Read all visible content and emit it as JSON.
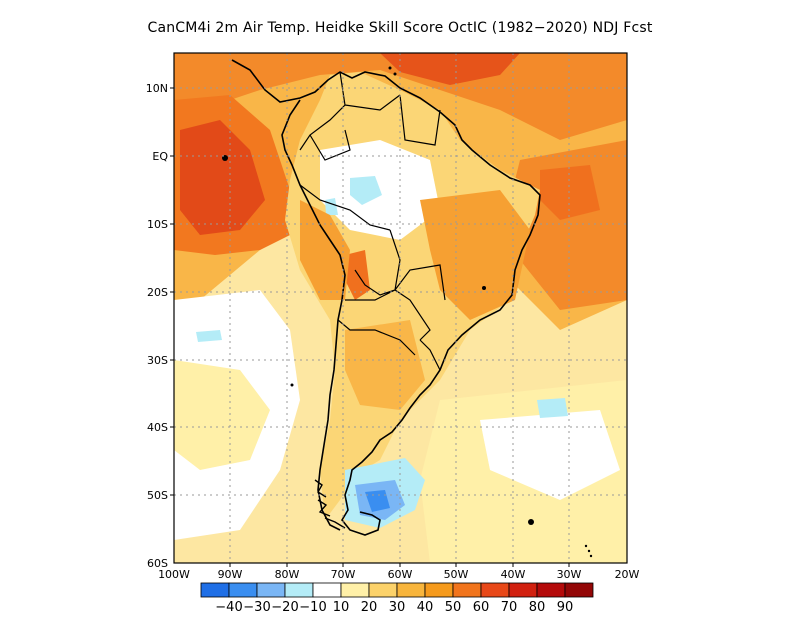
{
  "title": "CanCM4i  2m Air Temp. Heidke Skill Score OctIC (1982−2020) NDJ Fcst",
  "map": {
    "lat_labels": [
      "10N",
      "EQ",
      "10S",
      "20S",
      "30S",
      "40S",
      "50S",
      "60S"
    ],
    "lon_labels": [
      "100W",
      "90W",
      "80W",
      "70W",
      "60W",
      "50W",
      "40W",
      "30W",
      "20W"
    ],
    "region": "South America"
  },
  "colorbar": {
    "labels": [
      "−40",
      "−30",
      "−20",
      "−10",
      "10",
      "20",
      "30",
      "40",
      "50",
      "60",
      "70",
      "80",
      "90"
    ],
    "colors": [
      "#1f6fe6",
      "#3a8ef0",
      "#7ab6f5",
      "#b4ecf7",
      "#ffffff",
      "#fff0a8",
      "#fcd26a",
      "#f8b53c",
      "#f59a1c",
      "#f1741c",
      "#e84818",
      "#d1200f",
      "#b40a0a",
      "#930606"
    ]
  },
  "colors": {
    "ocean_base": "#fde7a2",
    "land_base": "#f9c55a",
    "high_skill": "#f0701e",
    "negative": "#7ab6f5",
    "coast": "#000000"
  }
}
